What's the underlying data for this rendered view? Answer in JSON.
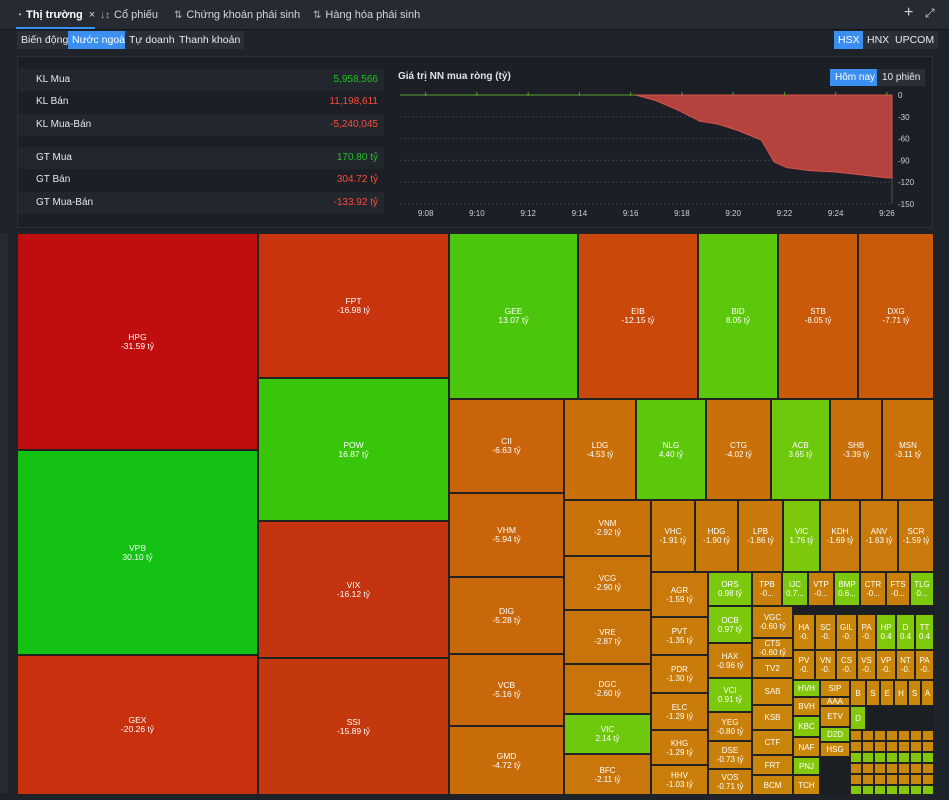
{
  "tabs": [
    {
      "label": "Thị trường",
      "icon": "pie-chart-icon",
      "active": true
    },
    {
      "label": "Cổ phiếu",
      "icon": "sort-icon"
    },
    {
      "label": "Chứng khoán phái sinh",
      "icon": "sort-numeric-icon"
    },
    {
      "label": "Hàng hóa phái sinh",
      "icon": "sort-numeric-icon"
    }
  ],
  "close_glyph": "×",
  "subtabs": [
    "Biến động",
    "Nước ngoài",
    "Tự doanh",
    "Thanh khoản"
  ],
  "exchanges": [
    "HSX",
    "HNX",
    "UPCOM"
  ],
  "stats": [
    {
      "label": "KL Mua",
      "value": "5,958,566",
      "color": "green"
    },
    {
      "label": "KL Bán",
      "value": "11,198,611",
      "color": "red"
    },
    {
      "label": "KL Mua-Bán",
      "value": "-5,240,045",
      "color": "red"
    },
    {
      "label": "GT Mua",
      "value": "170.80 tỷ",
      "color": "green"
    },
    {
      "label": "GT Bán",
      "value": "304.72 tỷ",
      "color": "red"
    },
    {
      "label": "GT Mua-Bán",
      "value": "-133.92 tỷ",
      "color": "red"
    }
  ],
  "chart_title": "Giá trị NN mua ròng (tỷ)",
  "periods": [
    "Hôm nay",
    "10 phiên"
  ],
  "colors": {
    "accent": "#3b8ff0",
    "green": "#1ec21e",
    "red": "#ff4a3a"
  },
  "chart_data": {
    "type": "area",
    "title": "Giá trị NN mua ròng (tỷ)",
    "x": [
      "9:08",
      "9:10",
      "9:12",
      "9:14",
      "9:16",
      "9:18",
      "9:20",
      "9:22",
      "9:24",
      "9:26"
    ],
    "y_ticks": [
      0,
      -30,
      -60,
      -90,
      -120,
      -150
    ],
    "ylim": [
      -150,
      0
    ],
    "xlim_minutes": [
      7,
      26.2
    ],
    "series": [
      {
        "name": "net",
        "points": [
          [
            7,
            0
          ],
          [
            16.2,
            0
          ],
          [
            17,
            -8
          ],
          [
            17.8,
            -20
          ],
          [
            18.7,
            -36
          ],
          [
            19.4,
            -40
          ],
          [
            20.2,
            -49
          ],
          [
            21.1,
            -62
          ],
          [
            21.6,
            -92
          ],
          [
            22.1,
            -100
          ],
          [
            23,
            -104
          ],
          [
            24,
            -106
          ],
          [
            25,
            -110
          ],
          [
            26,
            -114
          ],
          [
            26.2,
            -114
          ]
        ]
      }
    ]
  },
  "treemap": [
    {
      "t": "HPG",
      "v": "-31.59 tỷ"
    },
    {
      "t": "VPB",
      "v": "30.10 tỷ"
    },
    {
      "t": "GEX",
      "v": "-20.26 tỷ"
    },
    {
      "t": "FPT",
      "v": "-16.98 tỷ"
    },
    {
      "t": "POW",
      "v": "16.87 tỷ"
    },
    {
      "t": "VIX",
      "v": "-16.12 tỷ"
    },
    {
      "t": "SSI",
      "v": "-15.89 tỷ"
    },
    {
      "t": "GEE",
      "v": "13.07 tỷ"
    },
    {
      "t": "EIB",
      "v": "-12.15 tỷ"
    },
    {
      "t": "BID",
      "v": "8.05 tỷ"
    },
    {
      "t": "STB",
      "v": "-8.05 tỷ"
    },
    {
      "t": "DXG",
      "v": "-7.71 tỷ"
    },
    {
      "t": "CII",
      "v": "-6.63 tỷ"
    },
    {
      "t": "LDG",
      "v": "-4.53 tỷ"
    },
    {
      "t": "NLG",
      "v": "4.40 tỷ"
    },
    {
      "t": "CTG",
      "v": "-4.02 tỷ"
    },
    {
      "t": "ACB",
      "v": "3.65 tỷ"
    },
    {
      "t": "SHB",
      "v": "-3.39 tỷ"
    },
    {
      "t": "MSN",
      "v": "-3.11 tỷ"
    },
    {
      "t": "VHM",
      "v": "-5.94 tỷ"
    },
    {
      "t": "DIG",
      "v": "-5.28 tỷ"
    },
    {
      "t": "VCB",
      "v": "-5.16 tỷ"
    },
    {
      "t": "GMD",
      "v": "-4.72 tỷ"
    },
    {
      "t": "VNM",
      "v": "-2.92 tỷ"
    },
    {
      "t": "VCG",
      "v": "-2.90 tỷ"
    },
    {
      "t": "VRE",
      "v": "-2.87 tỷ"
    },
    {
      "t": "DGC",
      "v": "-2.60 tỷ"
    },
    {
      "t": "VIC",
      "v": "2.14 tỷ"
    },
    {
      "t": "BFC",
      "v": "-2.11 tỷ"
    },
    {
      "t": "VHC",
      "v": "-1.91 tỷ"
    },
    {
      "t": "HDG",
      "v": "-1.90 tỷ"
    },
    {
      "t": "LPB",
      "v": "-1.86 tỷ"
    },
    {
      "t": "VIC",
      "v": "1.76 tỷ"
    },
    {
      "t": "KDH",
      "v": "-1.69 tỷ"
    },
    {
      "t": "ANV",
      "v": "-1.63 tỷ"
    },
    {
      "t": "SCR",
      "v": "-1.59 tỷ"
    },
    {
      "t": "AGR",
      "v": "-1.59 tỷ"
    },
    {
      "t": "PVT",
      "v": "-1.35 tỷ"
    },
    {
      "t": "PDR",
      "v": "-1.30 tỷ"
    },
    {
      "t": "ELC",
      "v": "-1.29 tỷ"
    },
    {
      "t": "KHG",
      "v": "-1.29 tỷ"
    },
    {
      "t": "HHV",
      "v": "-1.03 tỷ"
    },
    {
      "t": "ORS",
      "v": "0.98 tỷ"
    },
    {
      "t": "OCB",
      "v": "0.97 tỷ"
    },
    {
      "t": "HAX",
      "v": "-0.96 tỷ"
    },
    {
      "t": "VCI",
      "v": "0.91 tỷ"
    },
    {
      "t": "YEG",
      "v": "-0.80 tỷ"
    },
    {
      "t": "DSE",
      "v": "-0.73 tỷ"
    },
    {
      "t": "VOS",
      "v": "-0.71 tỷ"
    },
    {
      "t": "TPB",
      "v": "-0..."
    },
    {
      "t": "IJC",
      "v": "0.7..."
    },
    {
      "t": "VTP",
      "v": "-0..."
    },
    {
      "t": "BMP",
      "v": "0.6..."
    },
    {
      "t": "CTR",
      "v": "-0..."
    },
    {
      "t": "FTS",
      "v": "-0..."
    },
    {
      "t": "TLG",
      "v": "0..."
    },
    {
      "t": "VGC",
      "v": "-0.60 tỷ"
    },
    {
      "t": "CTS",
      "v": "-0.60 tỷ"
    },
    {
      "t": "TV2",
      "v": ""
    },
    {
      "t": "SAB",
      "v": ""
    },
    {
      "t": "KSB",
      "v": ""
    },
    {
      "t": "CTF",
      "v": ""
    },
    {
      "t": "FRT",
      "v": ""
    },
    {
      "t": "BCM",
      "v": ""
    },
    {
      "t": "HA",
      "v": "-0."
    },
    {
      "t": "SC",
      "v": "-0."
    },
    {
      "t": "GIL",
      "v": "-0."
    },
    {
      "t": "PA",
      "v": "-0."
    },
    {
      "t": "HP",
      "v": "0.4"
    },
    {
      "t": "D",
      "v": "0.4"
    },
    {
      "t": "TT",
      "v": "0.4"
    },
    {
      "t": "PV",
      "v": "-0."
    },
    {
      "t": "VN",
      "v": "-0."
    },
    {
      "t": "CS",
      "v": "-0."
    },
    {
      "t": "VS",
      "v": "-0."
    },
    {
      "t": "VP",
      "v": "-0."
    },
    {
      "t": "NT",
      "v": "-0."
    },
    {
      "t": "PA",
      "v": "-0."
    },
    {
      "t": "HVH",
      "v": ""
    },
    {
      "t": "SIP",
      "v": ""
    },
    {
      "t": "B",
      "v": ""
    },
    {
      "t": "S",
      "v": ""
    },
    {
      "t": "E",
      "v": ""
    },
    {
      "t": "H",
      "v": ""
    },
    {
      "t": "S",
      "v": ""
    },
    {
      "t": "A",
      "v": ""
    },
    {
      "t": "BVH",
      "v": ""
    },
    {
      "t": "AAA",
      "v": ""
    },
    {
      "t": "KBC",
      "v": ""
    },
    {
      "t": "ETV",
      "v": ""
    },
    {
      "t": "D",
      "v": ""
    },
    {
      "t": "D2D",
      "v": ""
    },
    {
      "t": "NAF",
      "v": ""
    },
    {
      "t": "HSG",
      "v": ""
    },
    {
      "t": "PNJ",
      "v": ""
    },
    {
      "t": "TCH",
      "v": ""
    }
  ]
}
